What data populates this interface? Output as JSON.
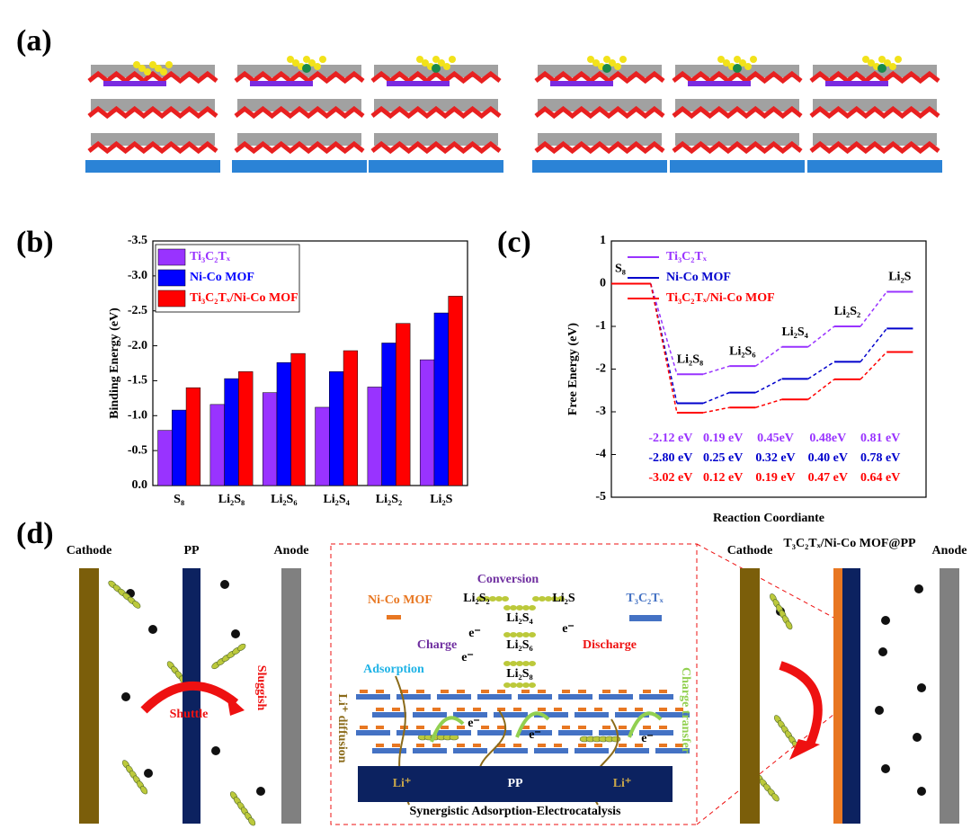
{
  "panels": {
    "a": "(a)",
    "b": "(b)",
    "c": "(c)",
    "d": "(d)"
  },
  "chart_data": [
    {
      "type": "bar",
      "ylabel": "Binding Energy (eV)",
      "categories": [
        "S₈",
        "Li₂S₈",
        "Li₂S₆",
        "Li₂S₄",
        "Li₂S₂",
        "Li₂S"
      ],
      "series": [
        {
          "name": "Ti₃C₂Tₓ",
          "color": "#9933ff",
          "values": [
            -0.79,
            -1.16,
            -1.33,
            -1.12,
            -1.41,
            -1.8
          ]
        },
        {
          "name": "Ni-Co MOF",
          "color": "#0000ff",
          "values": [
            -1.08,
            -1.53,
            -1.76,
            -1.63,
            -2.04,
            -2.47
          ]
        },
        {
          "name": "Ti₃C₂Tₓ/Ni-Co MOF",
          "color": "#ff0000",
          "values": [
            -1.4,
            -1.63,
            -1.89,
            -1.93,
            -2.32,
            -2.71
          ]
        }
      ],
      "ylim": [
        0,
        -3.5
      ],
      "yticks": [
        {
          "value": 0,
          "label": "0.0"
        },
        -0.5,
        {
          "value": -1,
          "label": "-1.0"
        },
        -1.5,
        {
          "value": -2,
          "label": "-2.0"
        },
        -2.5,
        {
          "value": -3,
          "label": "-3.0"
        },
        -3.5
      ],
      "legend": "upper left"
    },
    {
      "type": "line",
      "xlabel": "Reaction Coordiante",
      "ylabel": "Free Energy (eV)",
      "categories": [
        "S₈",
        "Li₂S₈",
        "Li₂S₆",
        "Li₂S₄",
        "Li₂S₂",
        "Li₂S"
      ],
      "series": [
        {
          "name": "Ti₃C₂Tₓ",
          "color": "#9933ff",
          "values": [
            0,
            -2.12,
            -1.93,
            -1.48,
            -1.0,
            -0.19
          ],
          "annotations": [
            "-2.12 eV",
            "0.19 eV",
            "0.45eV",
            "0.48eV",
            "0.81 eV"
          ]
        },
        {
          "name": "Ni-Co MOF",
          "color": "#0000cc",
          "values": [
            0,
            -2.8,
            -2.55,
            -2.23,
            -1.83,
            -1.05
          ],
          "annotations": [
            "-2.80 eV",
            "0.25 eV",
            "0.32 eV",
            "0.40 eV",
            "0.78 eV"
          ]
        },
        {
          "name": "Ti₃C₂Tₓ/Ni-Co MOF",
          "color": "#ff0000",
          "values": [
            0,
            -3.02,
            -2.9,
            -2.71,
            -2.24,
            -1.6
          ],
          "annotations": [
            "-3.02 eV",
            "0.12 eV",
            "0.19 eV",
            "0.47 eV",
            "0.64 eV"
          ]
        }
      ],
      "ylim": [
        -5,
        1
      ],
      "yticks": [
        -5,
        -4,
        -3,
        -2,
        -1,
        0,
        1
      ],
      "legend": "upper left"
    }
  ],
  "diagram": {
    "left": {
      "cathode": "Cathode",
      "separator": "PP",
      "anode": "Anode",
      "shuttle": "Shuttle",
      "sluggish": "Sluggish"
    },
    "center": {
      "conversion": "Conversion",
      "mof_legend": "Ni-Co MOF",
      "mxene_legend": "T₃C₂Tₓ",
      "li2s2": "Li₂S₂",
      "li2s": "Li₂S",
      "li2s4": "Li₂S₄",
      "li2s6": "Li₂S₆",
      "li2s8": "Li₂S₈",
      "electron": "e⁻",
      "charge": "Charge",
      "discharge": "Discharge",
      "adsorption": "Adsorption",
      "li_diffusion": "Li⁺ diffusion",
      "charge_transfer": "Charge transfer",
      "lithium_ion": "Li⁺",
      "separator": "PP",
      "caption": "Synergistic Adsorption-Electrocatalysis"
    },
    "right": {
      "cathode": "Cathode",
      "separator": "T₃C₂Tₓ/Ni-Co MOF@PP",
      "anode": "Anode"
    }
  }
}
